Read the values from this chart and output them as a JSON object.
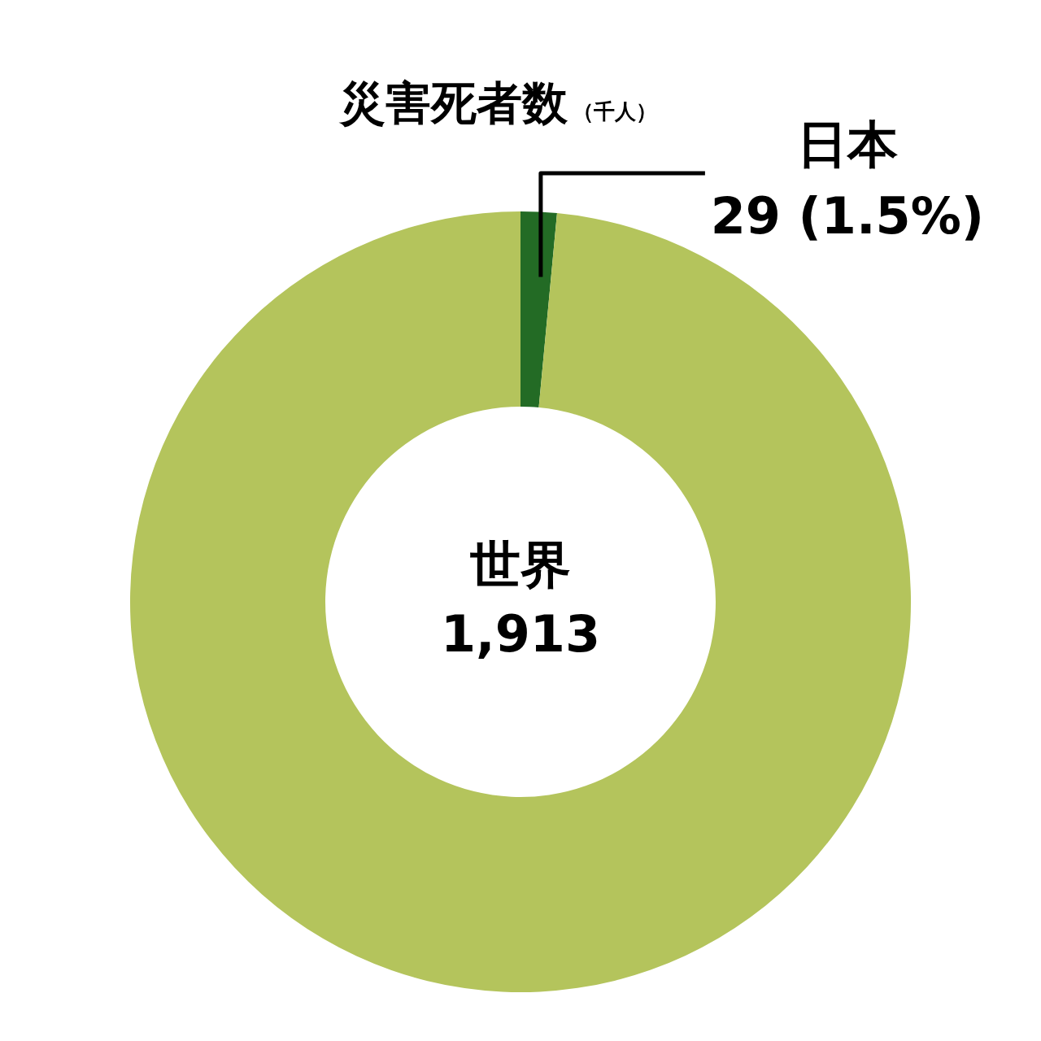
{
  "chart_data": {
    "type": "donut",
    "title": "災害死者数",
    "subtitle": "（千人）",
    "categories": [
      "日本",
      "世界"
    ],
    "values": [
      29,
      1913
    ],
    "value_labels": [
      "29 (1.5%)",
      "1,913"
    ],
    "colors": [
      "#236b25",
      "#b4c45c"
    ],
    "legend": false
  }
}
